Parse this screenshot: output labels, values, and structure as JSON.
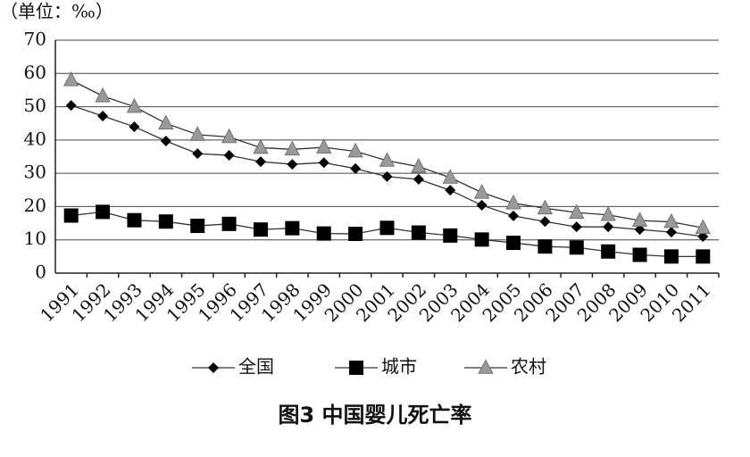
{
  "chart_data": {
    "type": "line",
    "title": "图3 中国婴儿死亡率",
    "y_label": "（单位：‰）",
    "categories": [
      "1991",
      "1992",
      "1993",
      "1994",
      "1995",
      "1996",
      "1997",
      "1998",
      "1999",
      "2000",
      "2001",
      "2002",
      "2003",
      "2004",
      "2005",
      "2006",
      "2007",
      "2008",
      "2009",
      "2010",
      "2011"
    ],
    "series": [
      {
        "name": "全国",
        "color": "#000000",
        "marker": "diamond",
        "values": [
          50.4,
          47.2,
          44.0,
          39.7,
          35.9,
          35.4,
          33.5,
          32.7,
          33.2,
          31.4,
          29.0,
          28.2,
          24.9,
          20.4,
          17.2,
          15.5,
          13.9,
          13.9,
          13.1,
          12.3,
          11.0
        ]
      },
      {
        "name": "城市",
        "color": "#000000",
        "marker": "square",
        "values": [
          17.3,
          18.4,
          15.9,
          15.5,
          14.2,
          14.8,
          13.1,
          13.5,
          11.9,
          11.8,
          13.6,
          12.2,
          11.3,
          10.1,
          9.1,
          8.0,
          7.7,
          6.5,
          5.5,
          5.0,
          5.0
        ]
      },
      {
        "name": "农村",
        "color": "#999999",
        "marker": "triangle",
        "values": [
          58.0,
          53.2,
          50.0,
          45.0,
          41.6,
          40.9,
          37.7,
          37.2,
          37.8,
          36.6,
          33.8,
          32.0,
          28.7,
          24.2,
          21.0,
          19.5,
          18.2,
          17.5,
          15.8,
          15.4,
          13.6
        ]
      }
    ],
    "ylim": [
      0,
      70
    ],
    "yticks": [
      0,
      10,
      20,
      30,
      40,
      50,
      60,
      70
    ],
    "grid": true,
    "legend": "bottom"
  }
}
